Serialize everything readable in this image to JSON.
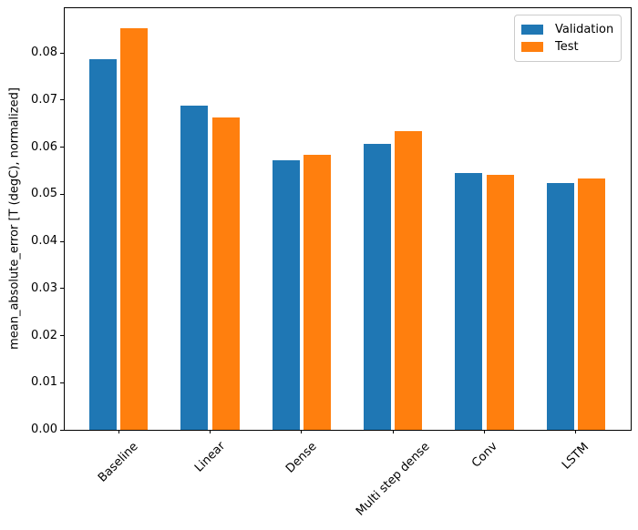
{
  "chart_data": {
    "type": "bar",
    "title": "",
    "xlabel": "",
    "ylabel": "mean_absolute_error [T (degC), normalized]",
    "categories": [
      "Baseline",
      "Linear",
      "Dense",
      "Multi step dense",
      "Conv",
      "LSTM"
    ],
    "series": [
      {
        "name": "Validation",
        "color": "#1f77b4",
        "values": [
          0.0786,
          0.0689,
          0.0573,
          0.0607,
          0.0545,
          0.0524
        ]
      },
      {
        "name": "Test",
        "color": "#ff7f0e",
        "values": [
          0.0853,
          0.0663,
          0.0584,
          0.0634,
          0.0542,
          0.0534
        ]
      }
    ],
    "ylim": [
      0,
      0.0897
    ],
    "yticks": [
      0.0,
      0.01,
      0.02,
      0.03,
      0.04,
      0.05,
      0.06,
      0.07,
      0.08
    ],
    "ytick_label_format": "2-decimals",
    "x_tick_rotation_deg": 45,
    "grid": false,
    "legend": {
      "position": "upper right",
      "entries": [
        "Validation",
        "Test"
      ]
    },
    "bar_group_offset_units": 0.17,
    "bar_width_units": 0.3,
    "axis_color": "#000000",
    "background_color": "#ffffff",
    "legend_border_color": "#cccccc"
  }
}
